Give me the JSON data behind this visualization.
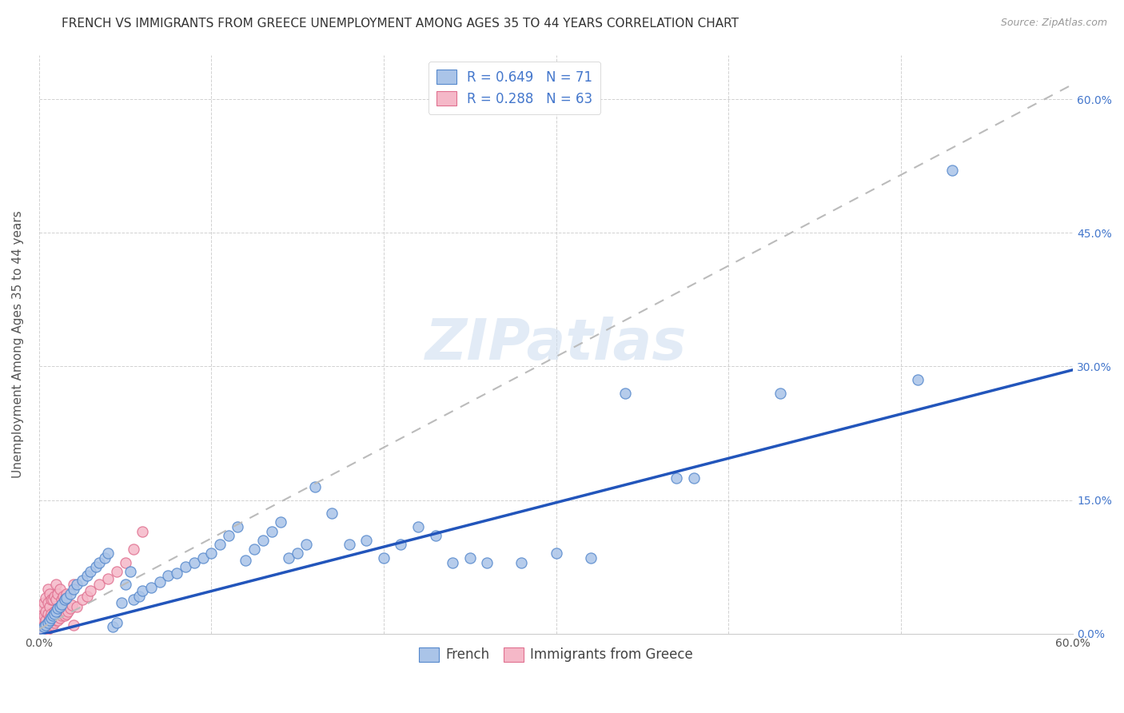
{
  "title": "FRENCH VS IMMIGRANTS FROM GREECE UNEMPLOYMENT AMONG AGES 35 TO 44 YEARS CORRELATION CHART",
  "source": "Source: ZipAtlas.com",
  "ylabel": "Unemployment Among Ages 35 to 44 years",
  "x_min": 0.0,
  "x_max": 0.6,
  "y_min": 0.0,
  "y_max": 0.65,
  "french_color": "#aac4e8",
  "france_edge_color": "#5588cc",
  "france_line_color": "#2255bb",
  "greece_color": "#f5b8c8",
  "greece_edge_color": "#e07090",
  "greece_line_color": "#cc6688",
  "greece_dash_color": "#bbbbbb",
  "background_color": "#ffffff",
  "grid_color": "#cccccc",
  "title_fontsize": 11,
  "axis_label_fontsize": 11,
  "tick_fontsize": 10,
  "legend_fontsize": 12,
  "watermark": "ZIPatlas",
  "watermark_fontsize": 52,
  "watermark_color": "#d0dff0",
  "watermark_alpha": 0.6,
  "french_line_slope": 0.497,
  "french_line_intercept": -0.002,
  "greece_line_slope": 1.02,
  "greece_line_intercept": 0.005,
  "french_scatter_x": [
    0.002,
    0.003,
    0.004,
    0.005,
    0.006,
    0.007,
    0.008,
    0.009,
    0.01,
    0.011,
    0.012,
    0.013,
    0.015,
    0.016,
    0.018,
    0.02,
    0.022,
    0.025,
    0.028,
    0.03,
    0.033,
    0.035,
    0.038,
    0.04,
    0.043,
    0.045,
    0.048,
    0.05,
    0.053,
    0.055,
    0.058,
    0.06,
    0.065,
    0.07,
    0.075,
    0.08,
    0.085,
    0.09,
    0.095,
    0.1,
    0.105,
    0.11,
    0.115,
    0.12,
    0.125,
    0.13,
    0.135,
    0.14,
    0.145,
    0.15,
    0.155,
    0.16,
    0.17,
    0.18,
    0.19,
    0.2,
    0.21,
    0.22,
    0.23,
    0.24,
    0.25,
    0.26,
    0.28,
    0.3,
    0.32,
    0.34,
    0.37,
    0.38,
    0.43,
    0.51,
    0.53
  ],
  "french_scatter_y": [
    0.005,
    0.008,
    0.01,
    0.012,
    0.015,
    0.018,
    0.02,
    0.022,
    0.025,
    0.028,
    0.03,
    0.033,
    0.038,
    0.04,
    0.045,
    0.05,
    0.055,
    0.06,
    0.065,
    0.07,
    0.075,
    0.08,
    0.085,
    0.09,
    0.008,
    0.012,
    0.035,
    0.055,
    0.07,
    0.038,
    0.042,
    0.048,
    0.052,
    0.058,
    0.065,
    0.068,
    0.075,
    0.08,
    0.085,
    0.09,
    0.1,
    0.11,
    0.12,
    0.082,
    0.095,
    0.105,
    0.115,
    0.125,
    0.085,
    0.09,
    0.1,
    0.165,
    0.135,
    0.1,
    0.105,
    0.085,
    0.1,
    0.12,
    0.11,
    0.08,
    0.085,
    0.08,
    0.08,
    0.09,
    0.085,
    0.27,
    0.175,
    0.175,
    0.27,
    0.285,
    0.52
  ],
  "greece_scatter_x": [
    0.001,
    0.001,
    0.002,
    0.002,
    0.002,
    0.003,
    0.003,
    0.003,
    0.004,
    0.004,
    0.004,
    0.004,
    0.005,
    0.005,
    0.005,
    0.005,
    0.005,
    0.006,
    0.006,
    0.006,
    0.006,
    0.007,
    0.007,
    0.007,
    0.008,
    0.008,
    0.008,
    0.009,
    0.009,
    0.009,
    0.01,
    0.01,
    0.01,
    0.01,
    0.011,
    0.011,
    0.011,
    0.012,
    0.012,
    0.012,
    0.013,
    0.013,
    0.014,
    0.014,
    0.015,
    0.015,
    0.016,
    0.016,
    0.017,
    0.018,
    0.019,
    0.02,
    0.02,
    0.022,
    0.025,
    0.028,
    0.03,
    0.035,
    0.04,
    0.045,
    0.05,
    0.055,
    0.06
  ],
  "greece_scatter_y": [
    0.005,
    0.02,
    0.008,
    0.015,
    0.03,
    0.01,
    0.02,
    0.035,
    0.008,
    0.015,
    0.025,
    0.04,
    0.005,
    0.012,
    0.022,
    0.035,
    0.05,
    0.01,
    0.018,
    0.03,
    0.045,
    0.012,
    0.022,
    0.038,
    0.01,
    0.02,
    0.038,
    0.012,
    0.025,
    0.042,
    0.015,
    0.025,
    0.038,
    0.055,
    0.015,
    0.028,
    0.045,
    0.018,
    0.03,
    0.05,
    0.02,
    0.038,
    0.022,
    0.042,
    0.02,
    0.038,
    0.022,
    0.045,
    0.025,
    0.028,
    0.032,
    0.01,
    0.055,
    0.03,
    0.038,
    0.042,
    0.048,
    0.055,
    0.062,
    0.07,
    0.08,
    0.095,
    0.115
  ]
}
